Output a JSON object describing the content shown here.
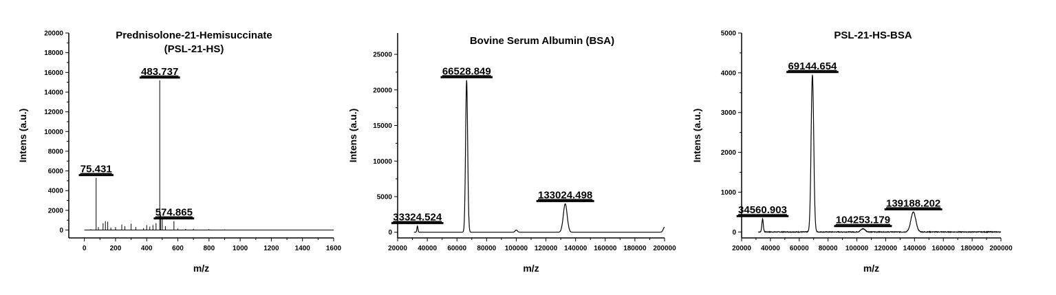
{
  "chart_data": [
    {
      "type": "line",
      "title": [
        "Prednisolone-21-Hemisuccinate",
        "(PSL-21-HS)"
      ],
      "xlabel": "m/z",
      "ylabel": "Intens (a.u.)",
      "xlim": [
        -100,
        1600
      ],
      "ylim": [
        -800,
        20000
      ],
      "xticks": [
        0,
        200,
        400,
        600,
        800,
        1000,
        1200,
        1400,
        1600
      ],
      "yticks": [
        0,
        2000,
        4000,
        6000,
        8000,
        10000,
        12000,
        14000,
        16000,
        18000,
        20000
      ],
      "spectrum_style": "stick",
      "series": [
        {
          "x": [
            0,
            40,
            75.431,
            90,
            120,
            135,
            150,
            170,
            200,
            240,
            260,
            300,
            330,
            380,
            400,
            420,
            440,
            460,
            483.737,
            490,
            500,
            520,
            574.865,
            600,
            650,
            700,
            800,
            900,
            1000,
            1200,
            1400,
            1600
          ],
          "y": [
            0,
            80,
            5300,
            300,
            700,
            900,
            850,
            250,
            300,
            550,
            400,
            650,
            300,
            200,
            500,
            350,
            500,
            700,
            15200,
            1600,
            1200,
            400,
            900,
            150,
            120,
            130,
            90,
            70,
            40,
            30,
            20,
            10
          ]
        }
      ],
      "annotations": [
        {
          "text": "75.431",
          "x": 75.431,
          "y": 5300
        },
        {
          "text": "483.737",
          "x": 483.737,
          "y": 15200
        },
        {
          "text": "574.865",
          "x": 574.865,
          "y": 900
        }
      ]
    },
    {
      "type": "line",
      "title": [
        "Bovine Serum Albumin (BSA)"
      ],
      "xlabel": "m/z",
      "ylabel": "Intens (a.u.)",
      "xlim": [
        20000,
        200000
      ],
      "ylim": [
        -800,
        28000
      ],
      "xticks": [
        20000,
        40000,
        60000,
        80000,
        100000,
        120000,
        140000,
        160000,
        180000,
        200000
      ],
      "yticks": [
        0,
        5000,
        10000,
        15000,
        20000,
        25000
      ],
      "spectrum_style": "profile",
      "peaks": [
        {
          "center": 33324.524,
          "height": 900,
          "width": 350
        },
        {
          "center": 66528.849,
          "height": 21400,
          "width": 700
        },
        {
          "center": 100000,
          "height": 300,
          "width": 800
        },
        {
          "center": 133024.498,
          "height": 4000,
          "width": 1300
        },
        {
          "center": 200000,
          "height": 700,
          "width": 900
        }
      ],
      "annotations": [
        {
          "text": "33324.524",
          "x": 33324.524,
          "y": 900
        },
        {
          "text": "66528.849",
          "x": 66528.849,
          "y": 21400
        },
        {
          "text": "133024.498",
          "x": 133024.498,
          "y": 4000
        }
      ]
    },
    {
      "type": "line",
      "title": [
        "PSL-21-HS-BSA"
      ],
      "xlabel": "m/z",
      "ylabel": "Intens (a.u.)",
      "xlim": [
        20000,
        200000
      ],
      "ylim": [
        -150,
        5000
      ],
      "xticks": [
        20000,
        40000,
        60000,
        80000,
        100000,
        120000,
        140000,
        160000,
        180000,
        200000
      ],
      "yticks": [
        0,
        1000,
        2000,
        3000,
        4000,
        5000
      ],
      "spectrum_style": "profile",
      "noise": 18,
      "peaks": [
        {
          "center": 34560.903,
          "height": 330,
          "width": 500
        },
        {
          "center": 69144.654,
          "height": 3950,
          "width": 900
        },
        {
          "center": 104253.179,
          "height": 80,
          "width": 1500
        },
        {
          "center": 139188.202,
          "height": 500,
          "width": 1700
        }
      ],
      "annotations": [
        {
          "text": "34560.903",
          "x": 34560.903,
          "y": 330
        },
        {
          "text": "69144.654",
          "x": 69144.654,
          "y": 3950
        },
        {
          "text": "104253.179",
          "x": 104253.179,
          "y": 80
        },
        {
          "text": "139188.202",
          "x": 139188.202,
          "y": 500
        }
      ]
    }
  ]
}
